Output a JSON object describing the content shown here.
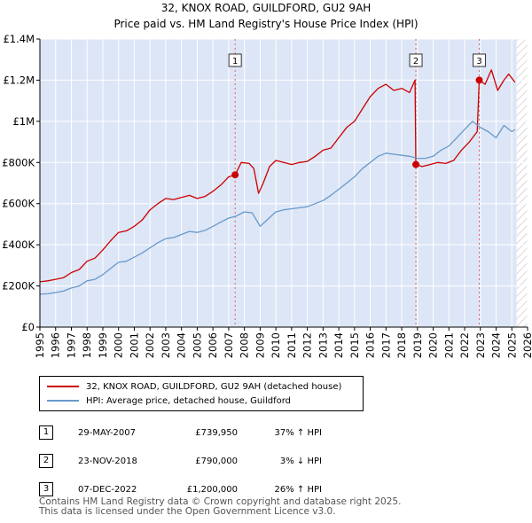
{
  "title_line1": "32, KNOX ROAD, GUILDFORD, GU2 9AH",
  "title_line2": "Price paid vs. HM Land Registry's House Price Index (HPI)",
  "colors": {
    "price": "#cc0000",
    "hpi": "#6699cc",
    "shade": "#dde6f6",
    "hatch": "#cccccc",
    "vline": "#e06060"
  },
  "legend": {
    "price_label": "32, KNOX ROAD, GUILDFORD, GU2 9AH (detached house)",
    "hpi_label": "HPI: Average price, detached house, Guildford"
  },
  "transactions": [
    {
      "num": "1",
      "date": "29-MAY-2007",
      "price": "£739,950",
      "hpi": "37% ↑ HPI"
    },
    {
      "num": "2",
      "date": "23-NOV-2018",
      "price": "£790,000",
      "hpi": "3% ↓ HPI"
    },
    {
      "num": "3",
      "date": "07-DEC-2022",
      "price": "£1,200,000",
      "hpi": "26% ↑ HPI"
    }
  ],
  "footer_line1": "Contains HM Land Registry data © Crown copyright and database right 2025.",
  "footer_line2": "This data is licensed under the Open Government Licence v3.0.",
  "chart_data": {
    "type": "line",
    "title": "32, KNOX ROAD, GUILDFORD, GU2 9AH",
    "subtitle": "Price paid vs. HM Land Registry's House Price Index (HPI)",
    "xlabel": "",
    "ylabel": "",
    "xlim": [
      1995,
      2026
    ],
    "ylim": [
      0,
      1400000
    ],
    "x_ticks": [
      "1995",
      "1996",
      "1997",
      "1998",
      "1999",
      "2000",
      "2001",
      "2002",
      "2003",
      "2004",
      "2005",
      "2006",
      "2007",
      "2008",
      "2009",
      "2010",
      "2011",
      "2012",
      "2013",
      "2014",
      "2015",
      "2016",
      "2017",
      "2018",
      "2019",
      "2020",
      "2021",
      "2022",
      "2023",
      "2024",
      "2025",
      "2026"
    ],
    "y_ticks": [
      {
        "value": 0,
        "label": "£0"
      },
      {
        "value": 200000,
        "label": "£200K"
      },
      {
        "value": 400000,
        "label": "£400K"
      },
      {
        "value": 600000,
        "label": "£600K"
      },
      {
        "value": 800000,
        "label": "£800K"
      },
      {
        "value": 1000000,
        "label": "£1M"
      },
      {
        "value": 1200000,
        "label": "£1.2M"
      },
      {
        "value": 1400000,
        "label": "£1.4M"
      }
    ],
    "grid": true,
    "shaded_region": [
      1995,
      2025.3
    ],
    "hatched_region": [
      2025.3,
      2026
    ],
    "sales": [
      {
        "label": "1",
        "x": 2007.41,
        "y": 739950
      },
      {
        "label": "2",
        "x": 2018.9,
        "y": 790000
      },
      {
        "label": "3",
        "x": 2022.93,
        "y": 1200000
      }
    ],
    "series": [
      {
        "name": "32, KNOX ROAD, GUILDFORD, GU2 9AH (detached house)",
        "x": [
          1995,
          1995.5,
          1996,
          1996.5,
          1997,
          1997.5,
          1998,
          1998.5,
          1999,
          1999.5,
          2000,
          2000.5,
          2001,
          2001.5,
          2002,
          2002.5,
          2003,
          2003.5,
          2004,
          2004.5,
          2005,
          2005.5,
          2006,
          2006.5,
          2007,
          2007.41,
          2007.8,
          2008.3,
          2008.6,
          2008.9,
          2009.2,
          2009.6,
          2010,
          2010.5,
          2011,
          2011.5,
          2012,
          2012.5,
          2013,
          2013.5,
          2014,
          2014.5,
          2015,
          2015.5,
          2016,
          2016.5,
          2017,
          2017.5,
          2018,
          2018.5,
          2018.85,
          2018.9,
          2019.3,
          2019.8,
          2020.3,
          2020.8,
          2021.3,
          2021.8,
          2022.3,
          2022.8,
          2022.93,
          2023.3,
          2023.7,
          2024.1,
          2024.5,
          2024.8,
          2025.2
        ],
        "values": [
          220000,
          225000,
          232000,
          240000,
          265000,
          280000,
          320000,
          335000,
          375000,
          420000,
          460000,
          468000,
          490000,
          520000,
          570000,
          600000,
          625000,
          620000,
          630000,
          640000,
          625000,
          635000,
          660000,
          690000,
          730000,
          739950,
          800000,
          795000,
          770000,
          650000,
          700000,
          780000,
          810000,
          800000,
          790000,
          800000,
          805000,
          830000,
          860000,
          870000,
          920000,
          970000,
          1000000,
          1060000,
          1120000,
          1160000,
          1180000,
          1150000,
          1160000,
          1140000,
          1200000,
          790000,
          780000,
          790000,
          800000,
          795000,
          810000,
          860000,
          900000,
          950000,
          1200000,
          1180000,
          1250000,
          1150000,
          1200000,
          1230000,
          1190000
        ]
      },
      {
        "name": "HPI: Average price, detached house, Guildford",
        "x": [
          1995,
          1995.5,
          1996,
          1996.5,
          1997,
          1997.5,
          1998,
          1998.5,
          1999,
          1999.5,
          2000,
          2000.5,
          2001,
          2001.5,
          2002,
          2002.5,
          2003,
          2003.5,
          2004,
          2004.5,
          2005,
          2005.5,
          2006,
          2006.5,
          2007,
          2007.5,
          2008,
          2008.5,
          2009,
          2009.5,
          2010,
          2010.5,
          2011,
          2011.5,
          2012,
          2012.5,
          2013,
          2013.5,
          2014,
          2014.5,
          2015,
          2015.5,
          2016,
          2016.5,
          2017,
          2017.5,
          2018,
          2018.5,
          2019,
          2019.5,
          2020,
          2020.5,
          2021,
          2021.5,
          2022,
          2022.5,
          2023,
          2023.5,
          2024,
          2024.5,
          2025,
          2025.2
        ],
        "values": [
          160000,
          162000,
          168000,
          175000,
          190000,
          200000,
          225000,
          232000,
          255000,
          285000,
          315000,
          320000,
          340000,
          360000,
          385000,
          410000,
          430000,
          435000,
          450000,
          465000,
          460000,
          470000,
          490000,
          510000,
          530000,
          540000,
          560000,
          555000,
          490000,
          525000,
          560000,
          570000,
          575000,
          580000,
          585000,
          600000,
          615000,
          640000,
          670000,
          700000,
          730000,
          770000,
          800000,
          830000,
          845000,
          840000,
          835000,
          830000,
          820000,
          820000,
          830000,
          860000,
          880000,
          920000,
          960000,
          1000000,
          970000,
          950000,
          920000,
          980000,
          950000,
          960000
        ]
      }
    ]
  }
}
